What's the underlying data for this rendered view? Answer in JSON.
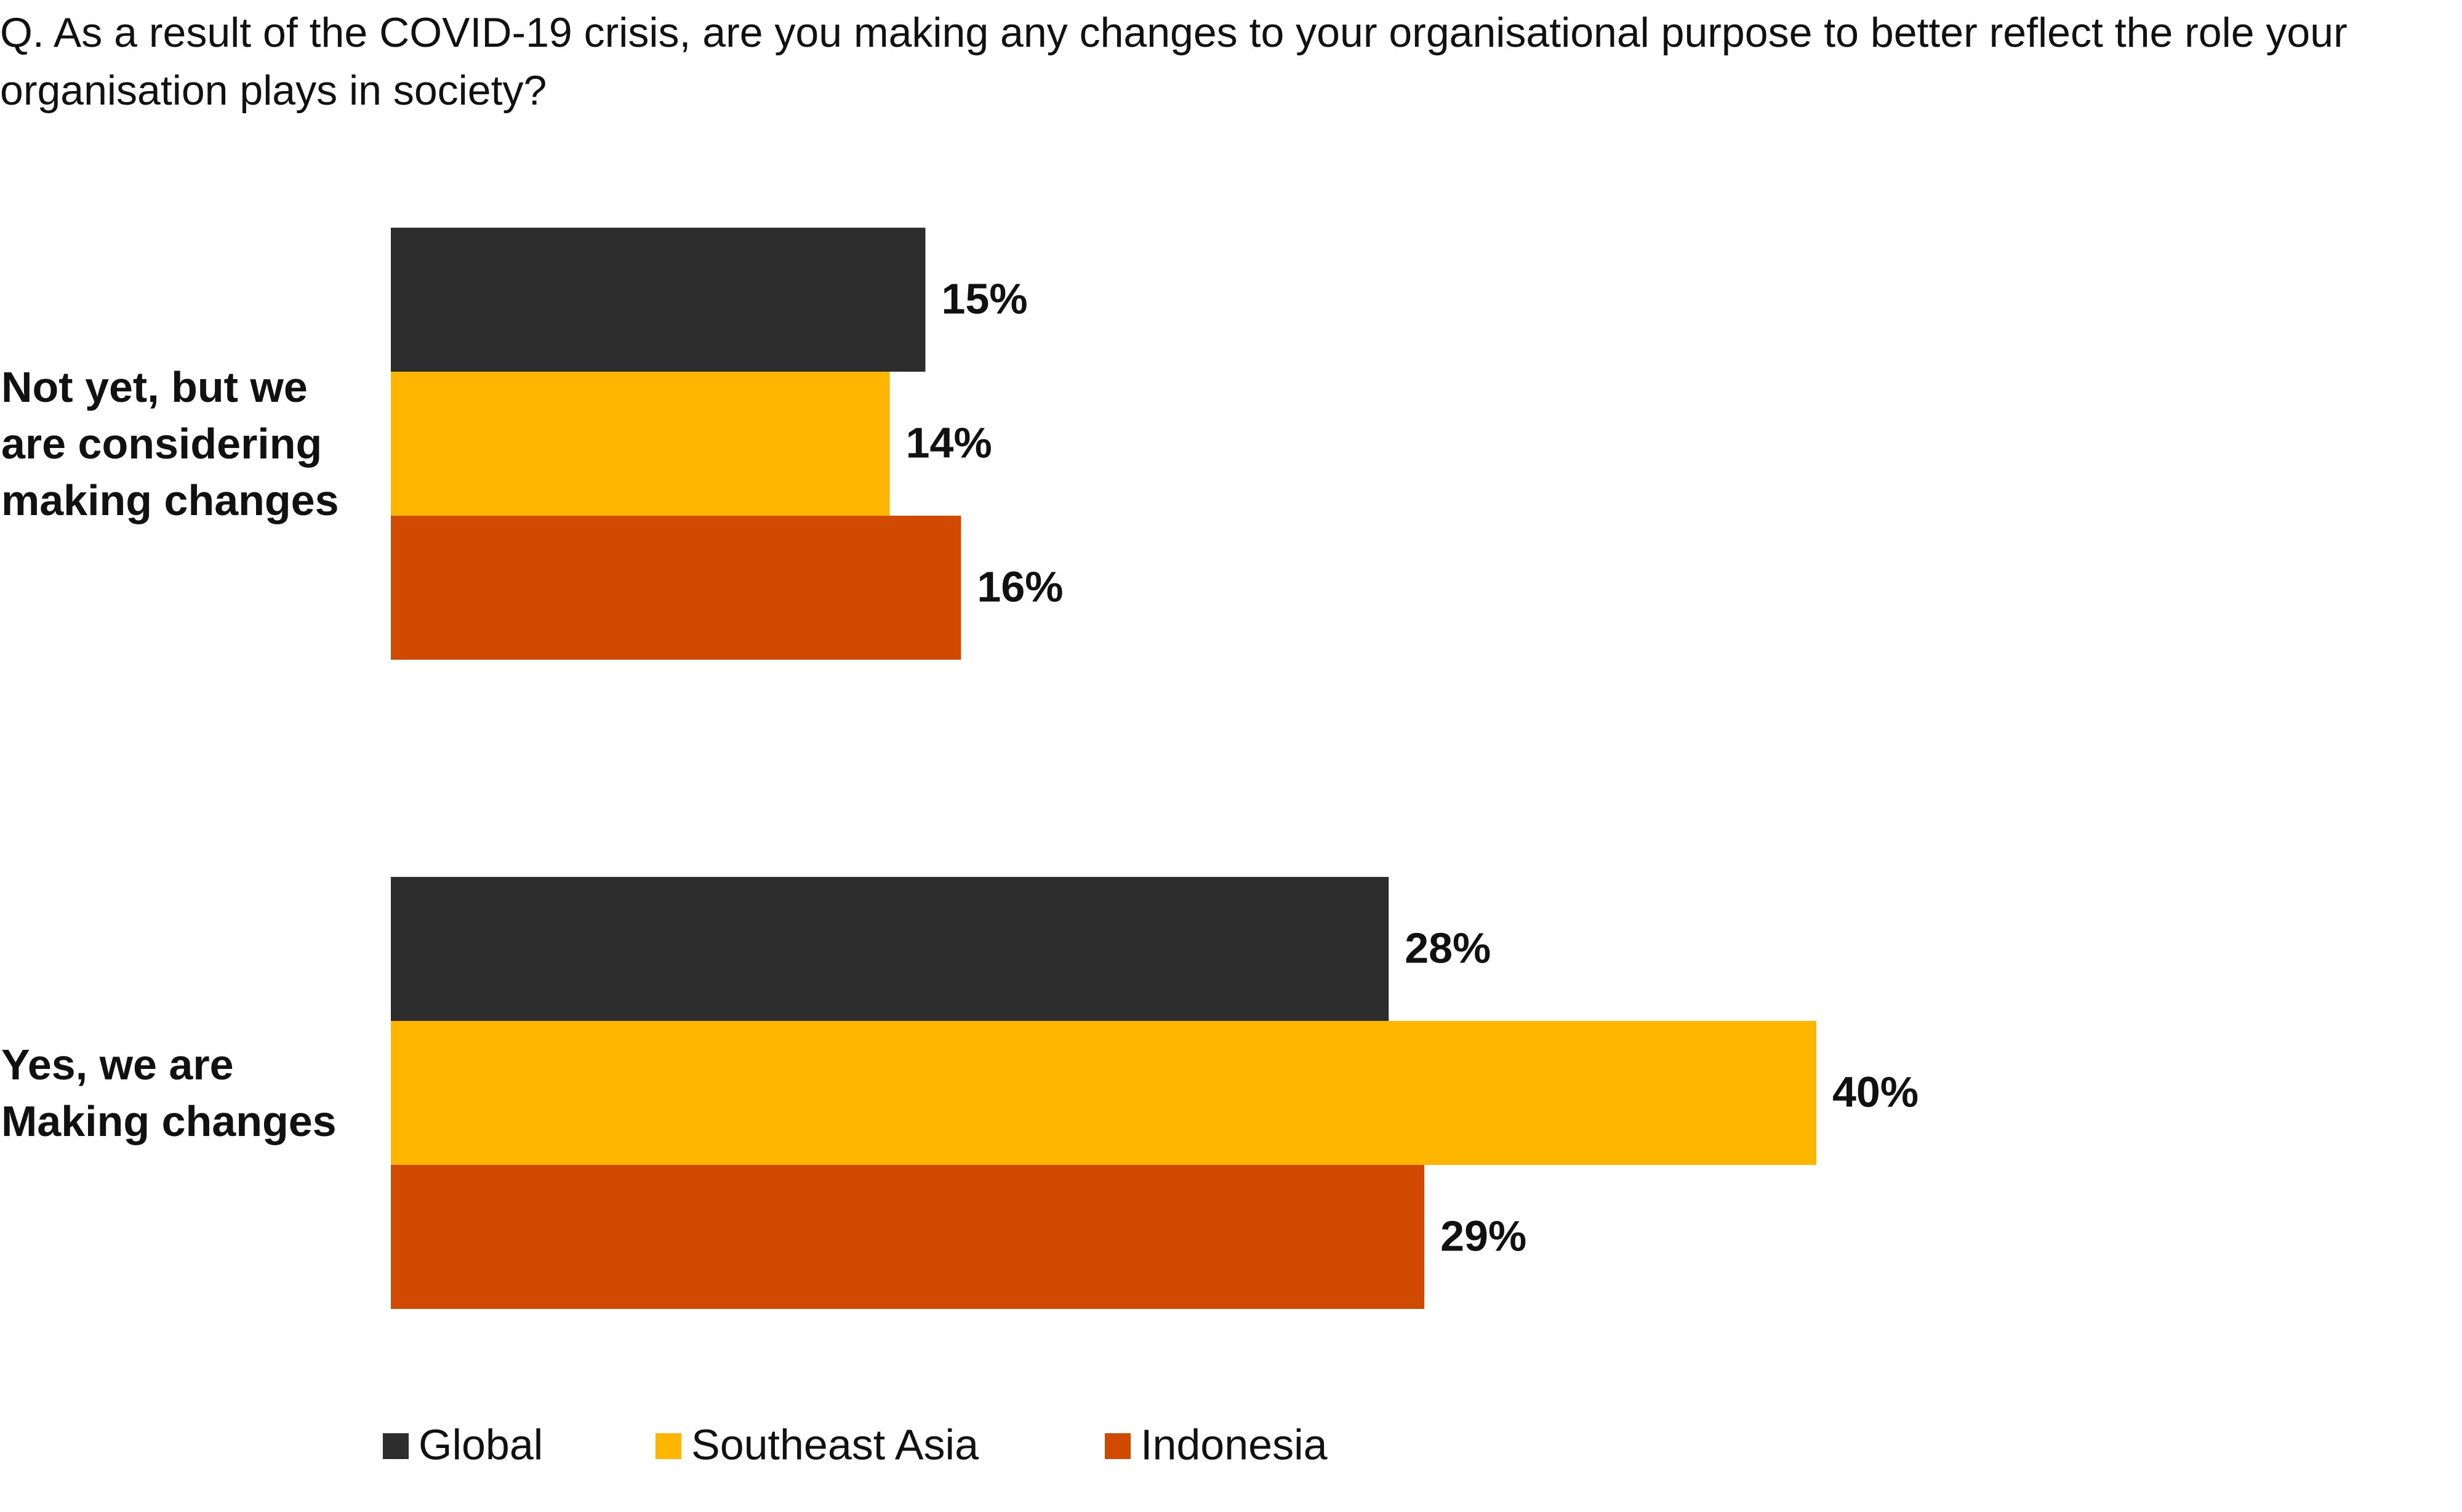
{
  "chart_data": {
    "type": "bar",
    "orientation": "horizontal",
    "title": "Q. As a result of the COVID-19 crisis, are you making any changes to your organisational purpose to better reflect the role your organisation plays in society?",
    "categories": [
      "Not yet, but we are considering making changes",
      "Yes, we are Making changes"
    ],
    "series": [
      {
        "name": "Global",
        "color": "#2d2d2d",
        "values": [
          15,
          28
        ],
        "value_labels": [
          "15%",
          "28%"
        ]
      },
      {
        "name": "Southeast Asia",
        "color": "#ffb600",
        "values": [
          14,
          40
        ],
        "value_labels": [
          "14%",
          "40%"
        ]
      },
      {
        "name": "Indonesia",
        "color": "#d04a02",
        "values": [
          16,
          29
        ],
        "value_labels": [
          "16%",
          "29%"
        ]
      }
    ],
    "xlim": [
      0,
      40
    ]
  }
}
